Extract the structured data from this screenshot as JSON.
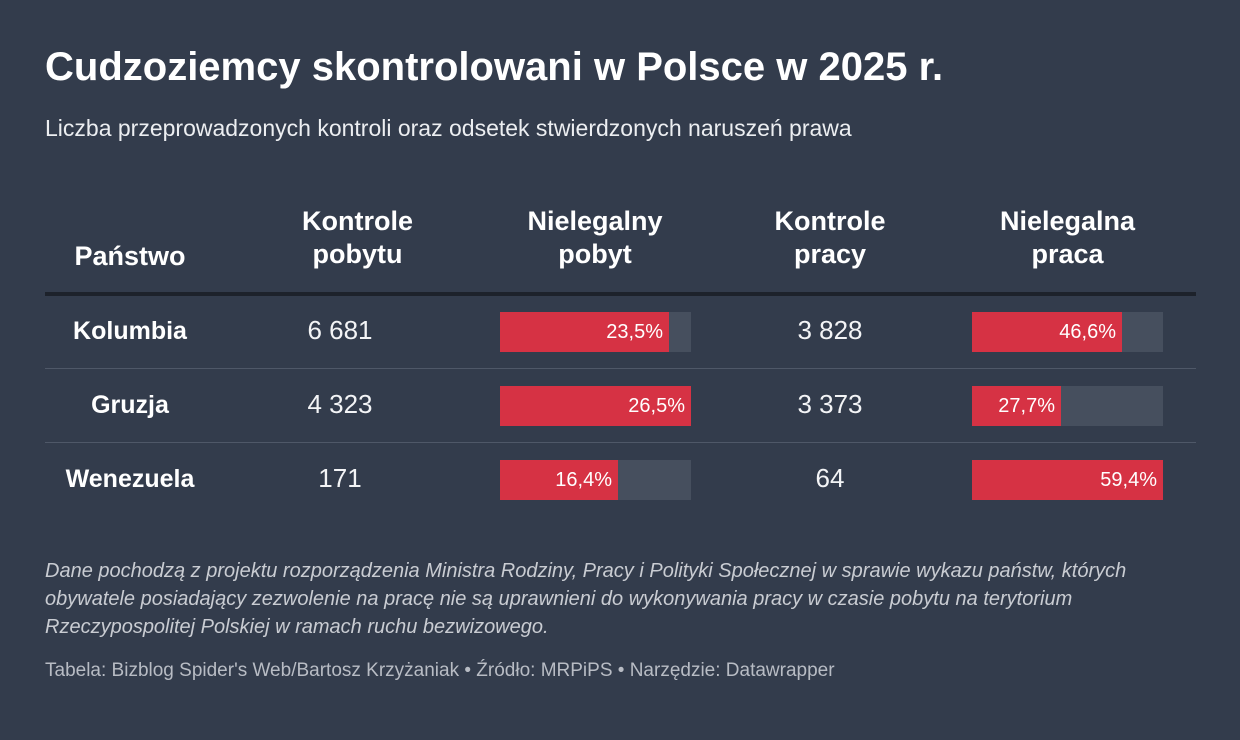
{
  "header": {
    "title": "Cudzoziemcy skontrolowani w Polsce w 2025 r.",
    "subtitle": "Liczba przeprowadzonych kontroli oraz odsetek stwierdzonych naruszeń prawa"
  },
  "colors": {
    "background": "#333c4c",
    "bar_fill": "#d63244",
    "bar_track": "#464f5e"
  },
  "chart_data": {
    "type": "table",
    "columns": [
      "Państwo",
      "Kontrole\npobytu",
      "Nielegalny\npobyt",
      "Kontrole\npracy",
      "Nielegalna\npraca"
    ],
    "rows": [
      {
        "country": "Kolumbia",
        "residence_checks": "6 681",
        "illegal_residence": {
          "label": "23,5%",
          "value": 23.5
        },
        "work_checks": "3 828",
        "illegal_work": {
          "label": "46,6%",
          "value": 46.6
        }
      },
      {
        "country": "Gruzja",
        "residence_checks": "4 323",
        "illegal_residence": {
          "label": "26,5%",
          "value": 26.5
        },
        "work_checks": "3 373",
        "illegal_work": {
          "label": "27,7%",
          "value": 27.7
        }
      },
      {
        "country": "Wenezuela",
        "residence_checks": "171",
        "illegal_residence": {
          "label": "16,4%",
          "value": 16.4
        },
        "work_checks": "64",
        "illegal_work": {
          "label": "59,4%",
          "value": 59.4
        }
      }
    ],
    "bar_scale": {
      "illegal_residence_max": 26.5,
      "illegal_work_max": 59.4
    }
  },
  "footer": {
    "note": "Dane pochodzą z projektu rozporządzenia Ministra Rodziny, Pracy i Polityki Społecznej w sprawie wykazu państw, których obywatele posiadający zezwolenie na pracę nie są uprawnieni do wykonywania pracy w czasie pobytu na terytorium Rzeczypospolitej Polskiej w ramach ruchu bezwizowego.",
    "credits": "Tabela: Bizblog Spider's Web/Bartosz Krzyżaniak • Źródło: MRPiPS • Narzędzie: Datawrapper"
  }
}
